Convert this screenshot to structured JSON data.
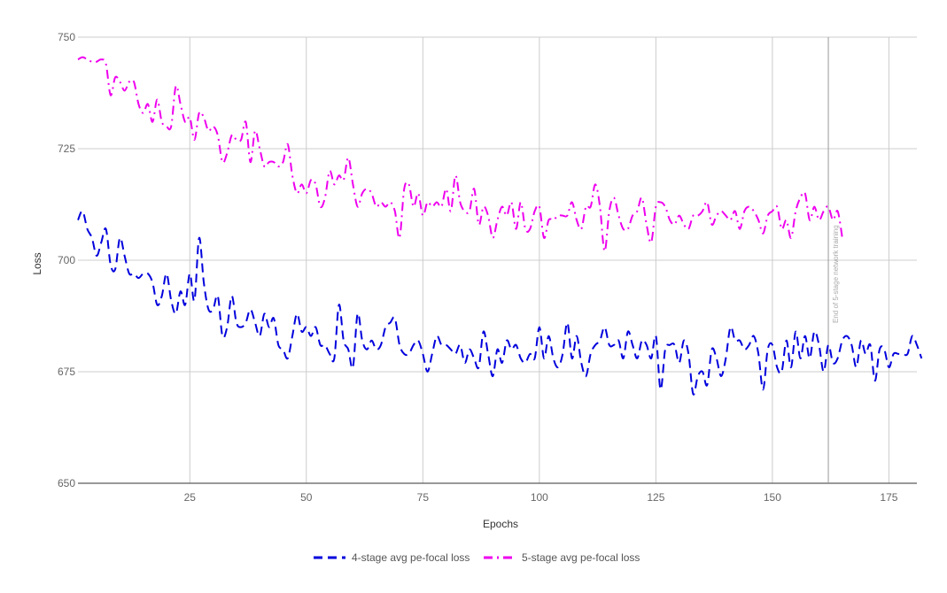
{
  "chart_data": {
    "type": "line",
    "title": "",
    "xlabel": "Epochs",
    "ylabel": "Loss",
    "xlim": [
      1,
      181
    ],
    "ylim": [
      650,
      750
    ],
    "x_ticks": [
      25,
      50,
      75,
      100,
      125,
      150,
      175
    ],
    "y_ticks": [
      650,
      675,
      700,
      725,
      750
    ],
    "grid": true,
    "legend_position": "bottom",
    "annotation": {
      "x": 162,
      "text": "End of 5-stage network training"
    },
    "series": [
      {
        "name": "4-stage avg pe-focal loss",
        "color": "#0000dd",
        "dash": "dashed",
        "x_start": 1,
        "values": [
          709,
          711,
          707,
          705,
          701,
          704,
          707,
          699,
          698,
          705,
          701,
          697,
          697,
          696,
          697,
          697,
          695,
          690,
          692,
          697,
          691,
          688,
          693,
          690,
          697,
          691,
          705,
          695,
          689,
          689,
          692,
          683,
          685,
          692,
          686,
          685,
          686,
          689,
          686,
          683,
          688,
          685,
          687,
          681,
          680,
          678,
          683,
          688,
          684,
          685,
          683,
          685,
          681,
          681,
          679,
          678,
          690,
          682,
          680,
          676,
          688,
          682,
          680,
          682,
          680,
          681,
          685,
          686,
          687,
          681,
          679,
          679,
          681,
          682,
          679,
          675,
          679,
          683,
          681,
          681,
          680,
          679,
          681,
          677,
          680,
          678,
          676,
          684,
          679,
          674,
          680,
          677,
          682,
          680,
          681,
          678,
          677,
          679,
          678,
          685,
          678,
          683,
          678,
          676,
          679,
          686,
          678,
          683,
          677,
          674,
          679,
          681,
          682,
          685,
          681,
          681,
          682,
          678,
          684,
          681,
          678,
          682,
          681,
          678,
          683,
          671,
          680,
          681,
          681,
          677,
          682,
          679,
          670,
          674,
          675,
          672,
          680,
          678,
          674,
          678,
          685,
          682,
          682,
          680,
          681,
          683,
          679,
          671,
          680,
          681,
          676,
          675,
          682,
          676,
          684,
          678,
          683,
          678,
          684,
          681,
          675,
          681,
          677,
          678,
          682,
          683,
          681,
          676,
          682,
          679,
          681,
          673,
          680,
          680,
          676,
          679,
          679,
          679,
          679,
          683,
          681,
          678
        ]
      },
      {
        "name": "5-stage avg pe-focal loss",
        "color": "#ee00ee",
        "dash": "dashdot",
        "x_start": 1,
        "values": [
          745,
          745.5,
          745,
          744.5,
          744.5,
          745,
          744,
          737,
          741,
          740,
          738,
          740,
          740,
          735,
          733,
          735,
          731,
          736,
          731,
          730,
          730,
          739,
          735,
          731,
          732,
          727,
          733,
          732,
          729,
          730,
          728,
          722,
          724,
          728,
          727,
          727,
          731,
          722,
          729,
          725,
          721,
          722,
          722,
          721,
          722,
          726,
          719,
          715,
          717,
          715,
          718,
          717,
          712,
          714,
          720,
          717,
          719,
          718,
          723,
          717,
          712,
          715,
          716,
          715,
          712,
          713,
          712,
          713,
          711,
          705,
          716,
          717,
          712,
          715,
          710,
          713,
          712,
          713,
          712,
          716,
          711,
          719,
          713,
          711,
          711,
          716,
          708,
          712,
          710,
          705,
          709,
          712,
          710,
          713,
          707,
          713,
          707,
          707,
          711,
          712,
          705,
          709,
          709,
          710,
          710,
          710,
          713,
          709,
          707,
          712,
          712,
          717,
          712,
          702,
          711,
          714,
          710,
          707,
          707,
          710,
          711,
          714,
          708,
          704,
          712,
          713,
          712,
          709,
          708,
          710,
          708,
          707,
          710,
          710,
          711,
          713,
          708,
          710,
          711,
          710,
          709,
          711,
          707,
          711,
          712,
          711,
          709,
          706,
          710,
          711,
          712,
          707,
          709,
          705,
          711,
          714,
          715,
          709,
          712,
          709,
          711,
          712,
          709,
          711,
          705
        ]
      }
    ]
  }
}
